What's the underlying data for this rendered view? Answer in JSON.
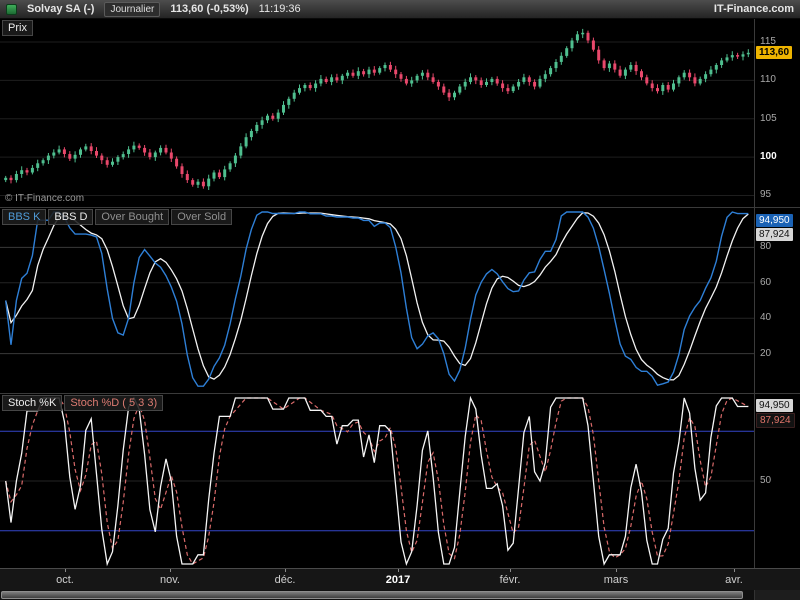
{
  "header": {
    "symbol": "Solvay SA (-)",
    "timeframe": "Journalier",
    "quote": "113,60 (-0,53%)",
    "time": "11:19:36",
    "brand": "IT-Finance.com"
  },
  "price_panel": {
    "label": "Prix",
    "watermark": "© IT-Finance.com",
    "last_price_badge": "113,60",
    "y_ticks": [
      "115",
      "110",
      "105",
      "100",
      "95"
    ]
  },
  "bbs_panel": {
    "tab_k": "BBS K",
    "tab_d": "BBS D",
    "tab_overbought": "Over Bought",
    "tab_oversold": "Over Sold",
    "badge_k": "94,950",
    "badge_d": "87,924",
    "y_ticks": [
      "80",
      "60",
      "40",
      "20"
    ]
  },
  "stoch_panel": {
    "tab_k": "Stoch %K",
    "tab_d": "Stoch %D ( 5 3 3)",
    "badge_k": "94,950",
    "badge_d": "87,924",
    "y_mid": "50"
  },
  "time_axis": {
    "ticks": [
      {
        "label": "oct."
      },
      {
        "label": "nov."
      },
      {
        "label": "déc."
      },
      {
        "label": "2017"
      },
      {
        "label": "févr."
      },
      {
        "label": "mars"
      },
      {
        "label": "avr."
      }
    ]
  },
  "chart_data": [
    {
      "type": "candlestick",
      "title": "Prix — Solvay SA, Journalier (daily)",
      "x_range": [
        "oct. 2016",
        "avr. 2017"
      ],
      "ylim": [
        93.5,
        118
      ],
      "y_ticks": [
        95,
        100,
        105,
        110,
        115
      ],
      "last_price": 113.6,
      "up_color": "#4fbf8f",
      "down_color": "#e8486b",
      "closes": [
        97.3,
        97.0,
        97.8,
        98.3,
        98.0,
        98.6,
        99.2,
        99.6,
        100.2,
        100.6,
        101.0,
        100.4,
        99.8,
        100.3,
        101.0,
        101.4,
        100.8,
        100.2,
        99.6,
        99.0,
        99.4,
        100.0,
        100.4,
        101.0,
        101.5,
        101.2,
        100.6,
        100.0,
        100.6,
        101.2,
        100.6,
        99.8,
        98.8,
        97.8,
        97.0,
        96.4,
        96.8,
        96.2,
        97.2,
        98.0,
        97.4,
        98.4,
        99.2,
        100.2,
        101.4,
        102.6,
        103.4,
        104.2,
        104.8,
        105.4,
        105.0,
        105.8,
        106.8,
        107.6,
        108.4,
        109.0,
        109.4,
        109.0,
        109.6,
        110.2,
        109.8,
        110.4,
        110.0,
        110.6,
        111.0,
        110.6,
        111.2,
        110.8,
        111.4,
        111.0,
        111.6,
        112.0,
        111.4,
        110.8,
        110.2,
        109.6,
        110.0,
        110.6,
        111.0,
        110.4,
        109.8,
        109.2,
        108.4,
        107.8,
        108.4,
        109.2,
        109.8,
        110.4,
        110.0,
        109.4,
        109.8,
        110.2,
        109.6,
        109.0,
        108.6,
        109.2,
        109.8,
        110.4,
        109.8,
        109.2,
        110.2,
        110.8,
        111.6,
        112.4,
        113.2,
        114.2,
        115.2,
        116.0,
        116.2,
        115.2,
        114.0,
        112.6,
        111.6,
        112.2,
        111.4,
        110.6,
        111.4,
        112.0,
        111.2,
        110.4,
        109.6,
        109.0,
        108.6,
        109.4,
        108.8,
        109.6,
        110.4,
        111.0,
        110.4,
        109.6,
        110.2,
        110.8,
        111.4,
        112.0,
        112.6,
        113.0,
        113.3,
        113.1,
        113.4,
        113.6
      ]
    },
    {
      "type": "line",
      "title": "BBS K / BBS D oscillator",
      "ylim": [
        0,
        100
      ],
      "grid_levels": [
        20,
        40,
        60,
        80
      ],
      "params": {
        "period": 14,
        "smooth": 5,
        "signal": 5,
        "derived_from": "stochastic of price closes"
      },
      "series": [
        {
          "name": "BBS K",
          "color": "#2e7fd6"
        },
        {
          "name": "BBS D",
          "color": "#f2f2f2"
        }
      ],
      "last_values": {
        "BBS K": 94.95,
        "BBS D": 87.924
      }
    },
    {
      "type": "line",
      "title": "Stoch %K / Stoch %D (5 3 3)",
      "ylim": [
        0,
        100
      ],
      "levels": {
        "over_bought": 80,
        "over_sold": 20,
        "mid": 50
      },
      "level_color": "#3446c8",
      "params": {
        "period": 5,
        "smooth": 3,
        "signal": 3,
        "derived_from": "stochastic of price closes"
      },
      "series": [
        {
          "name": "Stoch %K",
          "color": "#f5f5f5"
        },
        {
          "name": "Stoch %D",
          "color": "#d96a6a",
          "dashed": true
        }
      ],
      "last_values": {
        "Stoch %K": 94.95,
        "Stoch %D": 87.924
      }
    }
  ]
}
